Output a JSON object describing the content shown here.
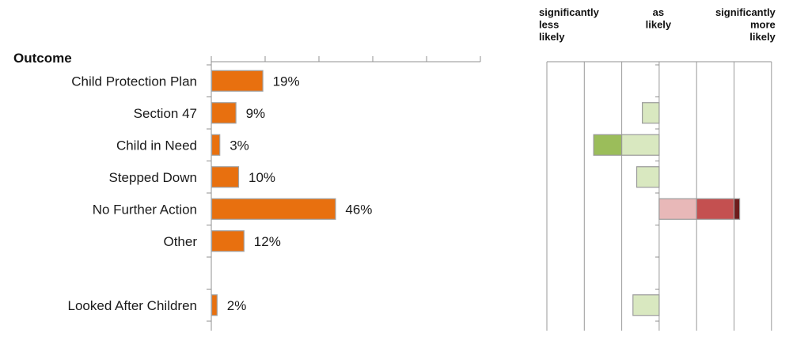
{
  "chart_data": [
    {
      "type": "bar",
      "orientation": "horizontal",
      "row_header": "Outcome",
      "categories": [
        "Child Protection Plan",
        "Section 47",
        "Child in Need",
        "Stepped Down",
        "No Further Action",
        "Other",
        "",
        "Looked After Children"
      ],
      "values": [
        19,
        9,
        3,
        10,
        46,
        12,
        null,
        2
      ],
      "value_labels": [
        "19%",
        "9%",
        "3%",
        "10%",
        "46%",
        "12%",
        "",
        "2%"
      ],
      "xlim": [
        0,
        100
      ],
      "grid": false,
      "colors": {
        "bar": "#e8700f",
        "bar_border": "#a0a0a0"
      }
    },
    {
      "type": "bar",
      "orientation": "diverging",
      "description_headers": [
        [
          "significantly",
          "less",
          "likely"
        ],
        [
          "as",
          "likely"
        ],
        [
          "significantly",
          "more",
          "likely"
        ]
      ],
      "xlim": [
        -3,
        3
      ],
      "grid": true,
      "rows": [
        {
          "category": "Child Protection Plan",
          "segments": []
        },
        {
          "category": "Section 47",
          "segments": [
            {
              "from": -0.45,
              "to": 0,
              "color": "#d9e8c0"
            }
          ]
        },
        {
          "category": "Child in Need",
          "segments": [
            {
              "from": -1.75,
              "to": -1,
              "color": "#9bbd5a"
            },
            {
              "from": -1,
              "to": 0,
              "color": "#d9e8c0"
            }
          ]
        },
        {
          "category": "Stepped Down",
          "segments": [
            {
              "from": -0.6,
              "to": 0,
              "color": "#d9e8c0"
            }
          ]
        },
        {
          "category": "No Further Action",
          "segments": [
            {
              "from": 0,
              "to": 1,
              "color": "#e8b8b8"
            },
            {
              "from": 1,
              "to": 2,
              "color": "#c45050"
            },
            {
              "from": 2,
              "to": 2.15,
              "color": "#6e1c1c"
            }
          ]
        },
        {
          "category": "Other",
          "segments": []
        },
        {
          "category": "",
          "segments": []
        },
        {
          "category": "Looked After Children",
          "segments": [
            {
              "from": -0.7,
              "to": 0,
              "color": "#d9e8c0"
            }
          ]
        }
      ],
      "colors": {
        "grid": "#9a9a9a",
        "axis": "#909090",
        "bar_border": "#9a9a9a"
      }
    }
  ]
}
